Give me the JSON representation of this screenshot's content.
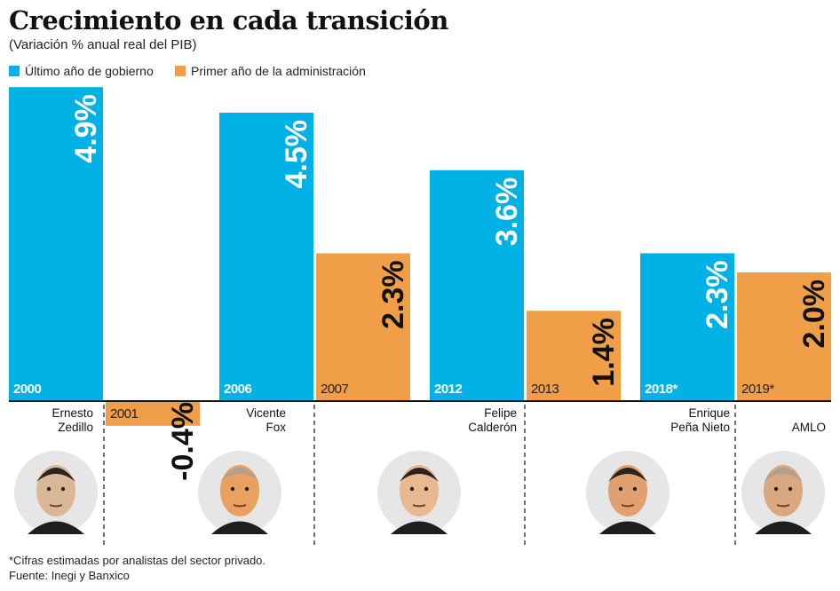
{
  "chart_data": {
    "type": "bar",
    "title": "Crecimiento en cada transición",
    "subtitle": "(Variación % anual real del PIB)",
    "legend": [
      {
        "name": "Último año de gobierno",
        "color": "#00b1e6"
      },
      {
        "name": "Primer año de la administración",
        "color": "#f09e48"
      }
    ],
    "legend_placement": "top-left",
    "grid": false,
    "categories": [
      "2000",
      "2001",
      "2006",
      "2007",
      "2012",
      "2013",
      "2018*",
      "2019*"
    ],
    "values": [
      4.9,
      -0.4,
      4.5,
      2.3,
      3.6,
      1.4,
      2.3,
      2.0
    ],
    "value_labels": [
      "4.9%",
      "-0.4%",
      "4.5%",
      "2.3%",
      "3.6%",
      "1.4%",
      "2.3%",
      "2.0%"
    ],
    "series_index": [
      0,
      1,
      0,
      1,
      0,
      1,
      0,
      1
    ],
    "presidents": [
      {
        "name_line1": "Ernesto",
        "name_line2": "Zedillo"
      },
      {
        "name_line1": "Vicente",
        "name_line2": "Fox"
      },
      {
        "name_line1": "Felipe",
        "name_line2": "Calderón"
      },
      {
        "name_line1": "Enrique",
        "name_line2": "Peña Nieto"
      },
      {
        "name_line1": "",
        "name_line2": "AMLO"
      }
    ]
  },
  "footnote": "*Cifras estimadas por analistas del sector privado.",
  "source": "Fuente: Inegi y Banxico"
}
